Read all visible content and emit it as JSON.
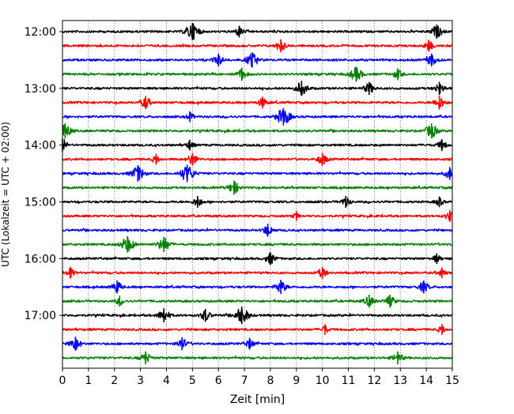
{
  "chart_data": {
    "type": "line",
    "title": "",
    "xlabel": "Zeit  [min]",
    "ylabel": "UTC (Lokalzeit = UTC + 02:00)",
    "xlim": [
      0,
      15
    ],
    "x_ticks": [
      0,
      1,
      2,
      3,
      4,
      5,
      6,
      7,
      8,
      9,
      10,
      11,
      12,
      13,
      14,
      15
    ],
    "y_tick_labels": [
      "12:00",
      "13:00",
      "14:00",
      "15:00",
      "16:00",
      "17:00"
    ],
    "y_tick_rows": [
      0,
      4,
      8,
      12,
      16,
      20
    ],
    "grid_x": true,
    "rows_per_hour": 4,
    "colors": [
      "#000000",
      "#ff0000",
      "#0000ff",
      "#008000"
    ],
    "rows": [
      {
        "start": "12:00",
        "color": "#000000",
        "events": [
          {
            "t": 5.0,
            "a": 1.0
          },
          {
            "t": 6.8,
            "a": 0.5
          },
          {
            "t": 14.4,
            "a": 0.7
          }
        ]
      },
      {
        "start": "12:15",
        "color": "#ff0000",
        "events": [
          {
            "t": 8.4,
            "a": 0.6
          },
          {
            "t": 14.1,
            "a": 0.5
          }
        ]
      },
      {
        "start": "12:30",
        "color": "#0000ff",
        "events": [
          {
            "t": 6.0,
            "a": 0.6
          },
          {
            "t": 7.3,
            "a": 0.8
          },
          {
            "t": 14.2,
            "a": 0.6
          }
        ]
      },
      {
        "start": "12:45",
        "color": "#008000",
        "events": [
          {
            "t": 6.9,
            "a": 0.6
          },
          {
            "t": 11.3,
            "a": 0.8
          },
          {
            "t": 12.9,
            "a": 0.5
          }
        ]
      },
      {
        "start": "13:00",
        "color": "#000000",
        "events": [
          {
            "t": 9.2,
            "a": 0.8
          },
          {
            "t": 11.8,
            "a": 0.6
          },
          {
            "t": 14.5,
            "a": 0.6
          }
        ]
      },
      {
        "start": "13:15",
        "color": "#ff0000",
        "events": [
          {
            "t": 3.2,
            "a": 0.6
          },
          {
            "t": 7.7,
            "a": 0.5
          },
          {
            "t": 14.5,
            "a": 0.7
          }
        ]
      },
      {
        "start": "13:30",
        "color": "#0000ff",
        "events": [
          {
            "t": 8.5,
            "a": 1.0
          },
          {
            "t": 4.9,
            "a": 0.4
          }
        ]
      },
      {
        "start": "13:45",
        "color": "#008000",
        "events": [
          {
            "t": 0.1,
            "a": 0.8
          },
          {
            "t": 14.2,
            "a": 0.8
          }
        ]
      },
      {
        "start": "14:00",
        "color": "#000000",
        "events": [
          {
            "t": 0.0,
            "a": 0.6
          },
          {
            "t": 4.9,
            "a": 0.4
          },
          {
            "t": 14.6,
            "a": 0.5
          }
        ]
      },
      {
        "start": "14:15",
        "color": "#ff0000",
        "events": [
          {
            "t": 5.0,
            "a": 0.6
          },
          {
            "t": 10.0,
            "a": 0.6
          },
          {
            "t": 3.6,
            "a": 0.4
          }
        ]
      },
      {
        "start": "14:30",
        "color": "#0000ff",
        "events": [
          {
            "t": 2.9,
            "a": 0.9
          },
          {
            "t": 4.8,
            "a": 1.0
          },
          {
            "t": 14.9,
            "a": 0.6
          }
        ]
      },
      {
        "start": "14:45",
        "color": "#008000",
        "events": [
          {
            "t": 6.6,
            "a": 0.7
          }
        ]
      },
      {
        "start": "15:00",
        "color": "#000000",
        "events": [
          {
            "t": 5.2,
            "a": 0.5
          },
          {
            "t": 10.9,
            "a": 0.5
          },
          {
            "t": 14.5,
            "a": 0.4
          }
        ]
      },
      {
        "start": "15:15",
        "color": "#ff0000",
        "events": [
          {
            "t": 14.9,
            "a": 0.5
          },
          {
            "t": 9.0,
            "a": 0.3
          }
        ]
      },
      {
        "start": "15:30",
        "color": "#0000ff",
        "events": [
          {
            "t": 7.9,
            "a": 0.6
          }
        ]
      },
      {
        "start": "15:45",
        "color": "#008000",
        "events": [
          {
            "t": 2.5,
            "a": 0.9
          },
          {
            "t": 3.9,
            "a": 0.8
          }
        ]
      },
      {
        "start": "16:00",
        "color": "#000000",
        "events": [
          {
            "t": 8.0,
            "a": 0.6
          },
          {
            "t": 14.4,
            "a": 0.4
          }
        ]
      },
      {
        "start": "16:15",
        "color": "#ff0000",
        "events": [
          {
            "t": 0.3,
            "a": 0.5
          },
          {
            "t": 10.0,
            "a": 0.5
          },
          {
            "t": 14.6,
            "a": 0.4
          }
        ]
      },
      {
        "start": "16:30",
        "color": "#0000ff",
        "events": [
          {
            "t": 2.1,
            "a": 0.6
          },
          {
            "t": 8.4,
            "a": 0.7
          },
          {
            "t": 13.9,
            "a": 0.6
          }
        ]
      },
      {
        "start": "16:45",
        "color": "#008000",
        "events": [
          {
            "t": 11.8,
            "a": 0.6
          },
          {
            "t": 12.6,
            "a": 0.6
          },
          {
            "t": 2.2,
            "a": 0.4
          }
        ]
      },
      {
        "start": "17:00",
        "color": "#000000",
        "events": [
          {
            "t": 3.9,
            "a": 0.7
          },
          {
            "t": 5.5,
            "a": 0.6
          },
          {
            "t": 6.9,
            "a": 1.0
          }
        ]
      },
      {
        "start": "17:15",
        "color": "#ff0000",
        "events": [
          {
            "t": 10.1,
            "a": 0.4
          },
          {
            "t": 14.6,
            "a": 0.4
          }
        ]
      },
      {
        "start": "17:30",
        "color": "#0000ff",
        "events": [
          {
            "t": 0.5,
            "a": 0.7
          },
          {
            "t": 4.6,
            "a": 0.6
          },
          {
            "t": 7.2,
            "a": 0.5
          }
        ]
      },
      {
        "start": "17:45",
        "color": "#008000",
        "events": [
          {
            "t": 3.2,
            "a": 0.6
          },
          {
            "t": 12.9,
            "a": 0.6
          }
        ]
      }
    ]
  }
}
